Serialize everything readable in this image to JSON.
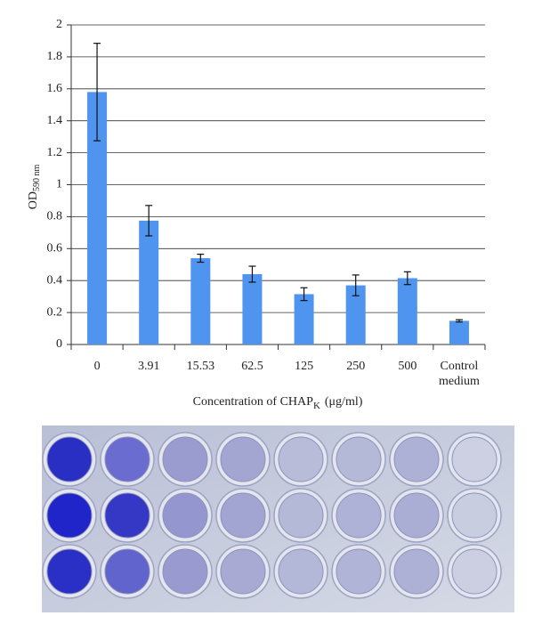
{
  "chart_data": {
    "type": "bar",
    "y_label": {
      "main": "OD",
      "sub": "590 nm"
    },
    "x_label": {
      "before": "Concentration of CHAP",
      "sub": "K",
      "after": "(μg/ml)"
    },
    "categories": [
      "0",
      "3.91",
      "15.53",
      "62.5",
      "125",
      "250",
      "500",
      "Control medium"
    ],
    "values": [
      1.58,
      0.775,
      0.54,
      0.44,
      0.315,
      0.37,
      0.415,
      0.148
    ],
    "errors": [
      0.305,
      0.095,
      0.025,
      0.05,
      0.04,
      0.065,
      0.04,
      0.007
    ],
    "color": "#4f94ef",
    "ylim": [
      0,
      2
    ],
    "yticks": [
      0,
      0.2,
      0.4,
      0.6,
      0.8,
      1,
      1.2,
      1.4,
      1.6,
      1.8,
      2
    ],
    "grid": true
  }
}
